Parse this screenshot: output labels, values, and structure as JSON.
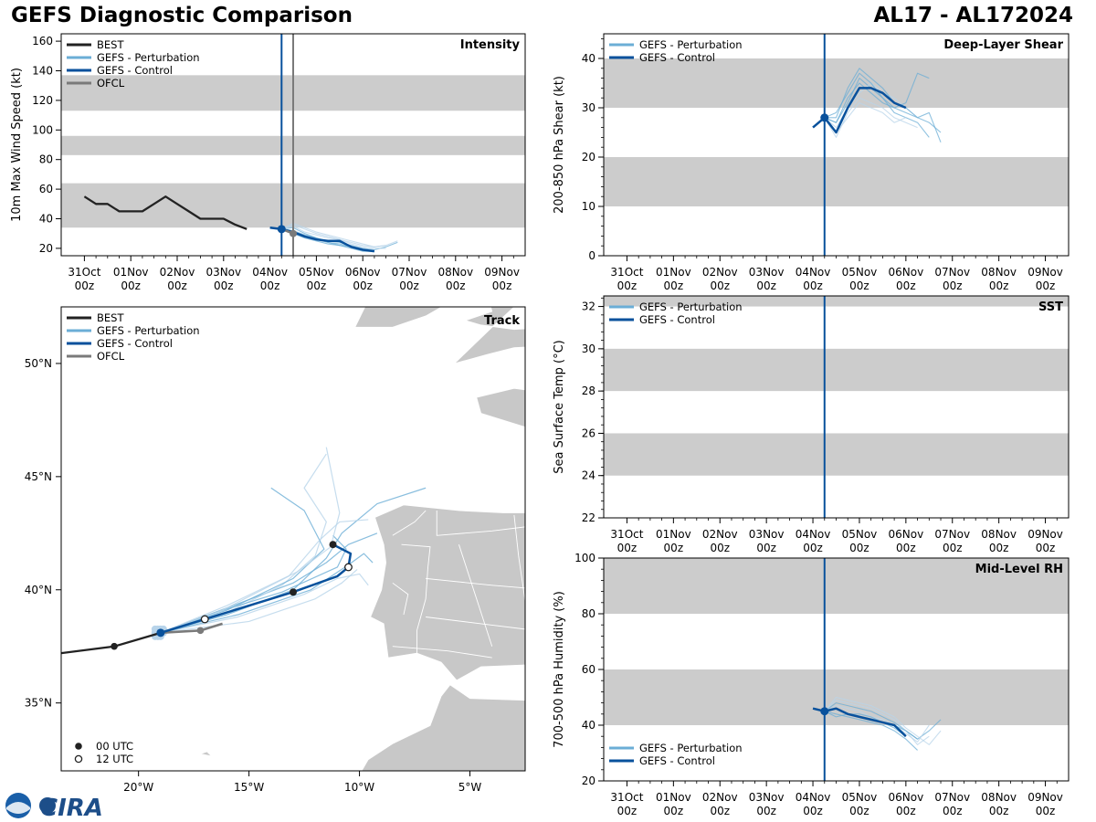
{
  "header": {
    "title": "GEFS Diagnostic Comparison",
    "storm_id": "AL17 - AL172024"
  },
  "logo": {
    "text": "CIRA"
  },
  "colors": {
    "best": "#222222",
    "perturbation": "#6baed6",
    "perturbation_light": "#b8d4ea",
    "control": "#08519c",
    "ofcl": "#7a7a7a",
    "band": "#cccccc",
    "land": "#c8c8c8"
  },
  "time_axis": {
    "ticks": [
      {
        "t": 0,
        "label": "31Oct\n00z"
      },
      {
        "t": 1,
        "label": "01Nov\n00z"
      },
      {
        "t": 2,
        "label": "02Nov\n00z"
      },
      {
        "t": 3,
        "label": "03Nov\n00z"
      },
      {
        "t": 4,
        "label": "04Nov\n00z"
      },
      {
        "t": 5,
        "label": "05Nov\n00z"
      },
      {
        "t": 6,
        "label": "06Nov\n00z"
      },
      {
        "t": 7,
        "label": "07Nov\n00z"
      },
      {
        "t": 8,
        "label": "08Nov\n00z"
      },
      {
        "t": 9,
        "label": "09Nov\n00z"
      }
    ],
    "range": [
      -0.5,
      9.5
    ],
    "init_time": 4.25,
    "ofcl_time": 4.5
  },
  "chart_data": [
    {
      "id": "intensity",
      "type": "line",
      "title": "Intensity",
      "ylabel": "10m Max Wind Speed (kt)",
      "ylim": [
        15,
        165
      ],
      "yticks": [
        20,
        40,
        60,
        80,
        100,
        120,
        140,
        160
      ],
      "bands": [
        [
          34,
          64
        ],
        [
          83,
          96
        ],
        [
          113,
          137
        ]
      ],
      "legend": [
        "BEST",
        "GEFS - Perturbation",
        "GEFS - Control",
        "OFCL"
      ],
      "best": {
        "x": [
          0,
          0.25,
          0.5,
          0.75,
          1,
          1.25,
          1.5,
          1.75,
          2,
          2.25,
          2.5,
          2.75,
          3,
          3.25,
          3.5
        ],
        "y": [
          55,
          50,
          50,
          45,
          45,
          45,
          50,
          55,
          50,
          45,
          40,
          40,
          40,
          36,
          33
        ]
      },
      "control": {
        "x": [
          4,
          4.25,
          4.5,
          4.75,
          5,
          5.25,
          5.5,
          5.75,
          6,
          6.25
        ],
        "y": [
          34,
          33,
          31,
          28,
          26,
          25,
          25,
          21,
          19,
          18
        ]
      },
      "perturbations": [
        {
          "x": [
            4.25,
            4.5,
            4.75,
            5,
            5.25,
            5.5,
            5.75,
            6,
            6.25,
            6.5,
            6.75
          ],
          "y": [
            33,
            34,
            30,
            27,
            25,
            24,
            22,
            20,
            19,
            21,
            24
          ]
        },
        {
          "x": [
            4.25,
            4.5,
            4.75,
            5,
            5.25,
            5.5,
            5.75,
            6,
            6.25,
            6.5
          ],
          "y": [
            33,
            36,
            33,
            30,
            28,
            26,
            23,
            21,
            20,
            20
          ]
        },
        {
          "x": [
            4.25,
            4.5,
            4.75,
            5,
            5.25,
            5.5,
            5.75,
            6,
            6.25
          ],
          "y": [
            33,
            32,
            29,
            27,
            24,
            22,
            20,
            18,
            18
          ]
        },
        {
          "x": [
            4.25,
            4.5,
            4.75,
            5,
            5.25,
            5.5,
            5.75,
            6,
            6.25,
            6.5,
            6.75
          ],
          "y": [
            33,
            35,
            31,
            29,
            27,
            26,
            24,
            22,
            21,
            22,
            25
          ]
        },
        {
          "x": [
            4.25,
            4.5,
            4.75,
            5,
            5.25,
            5.5,
            5.75,
            6,
            6.25
          ],
          "y": [
            33,
            30,
            27,
            25,
            23,
            22,
            21,
            19,
            18
          ]
        },
        {
          "x": [
            4.25,
            4.5,
            4.75,
            5,
            5.25,
            5.5,
            5.75,
            6,
            6.25,
            6.5
          ],
          "y": [
            33,
            37,
            34,
            31,
            29,
            27,
            25,
            23,
            21,
            22
          ]
        },
        {
          "x": [
            4.25,
            4.5,
            4.75,
            5,
            5.25,
            5.5,
            5.75,
            6
          ],
          "y": [
            33,
            31,
            28,
            26,
            24,
            23,
            21,
            19
          ]
        }
      ],
      "ofcl": {
        "x": [
          4.25,
          4.5
        ],
        "y": [
          33,
          30
        ]
      }
    },
    {
      "id": "shear",
      "type": "line",
      "title": "Deep-Layer Shear",
      "ylabel": "200-850 hPa Shear (kt)",
      "ylim": [
        0,
        45
      ],
      "yticks": [
        0,
        10,
        20,
        30,
        40
      ],
      "bands": [
        [
          10,
          20
        ],
        [
          30,
          40
        ]
      ],
      "legend": [
        "GEFS - Perturbation",
        "GEFS - Control"
      ],
      "control": {
        "x": [
          4,
          4.25,
          4.5,
          4.75,
          5,
          5.25,
          5.5,
          5.75,
          6
        ],
        "y": [
          26,
          28,
          25,
          30,
          34,
          34,
          33,
          31,
          30
        ]
      },
      "perturbations": [
        {
          "x": [
            4.25,
            4.5,
            4.75,
            5,
            5.25,
            5.5,
            5.75,
            6,
            6.25,
            6.5,
            6.75
          ],
          "y": [
            28,
            27,
            31,
            36,
            34,
            32,
            30,
            29,
            28,
            29,
            23
          ]
        },
        {
          "x": [
            4.25,
            4.5,
            4.75,
            5,
            5.25,
            5.5,
            5.75,
            6,
            6.25
          ],
          "y": [
            28,
            26,
            30,
            33,
            35,
            33,
            32,
            30,
            28
          ]
        },
        {
          "x": [
            4.25,
            4.5,
            4.75,
            5,
            5.25,
            5.5,
            5.75,
            6,
            6.25,
            6.5
          ],
          "y": [
            28,
            29,
            33,
            37,
            35,
            32,
            29,
            28,
            27,
            24
          ]
        },
        {
          "x": [
            4.25,
            4.5,
            4.75,
            5,
            5.25,
            5.5,
            5.75,
            6,
            6.25
          ],
          "y": [
            28,
            24,
            29,
            32,
            31,
            30,
            28,
            27,
            26
          ]
        },
        {
          "x": [
            4.25,
            4.5,
            4.75,
            5,
            5.25,
            5.5,
            5.75,
            6,
            6.25,
            6.5
          ],
          "y": [
            28,
            27,
            32,
            35,
            33,
            31,
            30,
            31,
            37,
            36
          ]
        },
        {
          "x": [
            4.25,
            4.5,
            4.75,
            5,
            5.25,
            5.5,
            5.75,
            6
          ],
          "y": [
            28,
            25,
            28,
            31,
            30,
            29,
            27,
            28
          ]
        },
        {
          "x": [
            4.25,
            4.5,
            4.75,
            5,
            5.25,
            5.5,
            5.75,
            6,
            6.25,
            6.5,
            6.75
          ],
          "y": [
            28,
            28,
            34,
            38,
            36,
            34,
            31,
            30,
            28,
            27,
            25
          ]
        }
      ]
    },
    {
      "id": "sst",
      "type": "line",
      "title": "SST",
      "ylabel": "Sea Surface Temp (°C)",
      "ylim": [
        22,
        32.5
      ],
      "yticks": [
        22,
        24,
        26,
        28,
        30,
        32
      ],
      "bands": [
        [
          24,
          26
        ],
        [
          28,
          30
        ],
        [
          32,
          32.5
        ]
      ],
      "legend": [
        "GEFS - Perturbation",
        "GEFS - Control"
      ]
    },
    {
      "id": "rh",
      "type": "line",
      "title": "Mid-Level RH",
      "ylabel": "700-500 hPa Humidity (%)",
      "ylim": [
        20,
        100
      ],
      "yticks": [
        20,
        40,
        60,
        80,
        100
      ],
      "bands": [
        [
          40,
          60
        ],
        [
          80,
          100
        ]
      ],
      "legend": [
        "GEFS - Perturbation",
        "GEFS - Control"
      ],
      "control": {
        "x": [
          4,
          4.25,
          4.5,
          4.75,
          5,
          5.25,
          5.5,
          5.75,
          6
        ],
        "y": [
          46,
          45,
          46,
          44,
          43,
          42,
          41,
          40,
          36
        ]
      },
      "perturbations": [
        {
          "x": [
            4.25,
            4.5,
            4.75,
            5,
            5.25,
            5.5,
            5.75,
            6,
            6.25,
            6.5,
            6.75
          ],
          "y": [
            45,
            48,
            47,
            46,
            45,
            43,
            41,
            38,
            35,
            38,
            42
          ]
        },
        {
          "x": [
            4.25,
            4.5,
            4.75,
            5,
            5.25,
            5.5,
            5.75,
            6,
            6.25,
            6.5
          ],
          "y": [
            45,
            49,
            48,
            47,
            46,
            44,
            42,
            38,
            33,
            36
          ]
        },
        {
          "x": [
            4.25,
            4.5,
            4.75,
            5,
            5.25,
            5.5,
            5.75,
            6,
            6.25
          ],
          "y": [
            45,
            44,
            43,
            42,
            41,
            40,
            38,
            35,
            31
          ]
        },
        {
          "x": [
            4.25,
            4.5,
            4.75,
            5,
            5.25,
            5.5,
            5.75,
            6,
            6.25,
            6.5
          ],
          "y": [
            45,
            47,
            46,
            45,
            43,
            42,
            40,
            37,
            34,
            40
          ]
        },
        {
          "x": [
            4.25,
            4.5,
            4.75,
            5,
            5.25,
            5.5,
            5.75,
            6
          ],
          "y": [
            45,
            43,
            44,
            43,
            42,
            41,
            39,
            36
          ]
        },
        {
          "x": [
            4.25,
            4.5,
            4.75,
            5,
            5.25,
            5.5,
            5.75,
            6,
            6.25,
            6.5,
            6.75
          ],
          "y": [
            45,
            50,
            49,
            48,
            47,
            45,
            43,
            39,
            36,
            33,
            38
          ]
        },
        {
          "x": [
            4.25,
            4.5,
            4.75,
            5,
            5.25,
            5.5,
            5.75,
            6,
            6.25
          ],
          "y": [
            45,
            46,
            44,
            44,
            43,
            41,
            40,
            38,
            35
          ]
        }
      ]
    },
    {
      "id": "track",
      "type": "map",
      "title": "Track",
      "xlim": [
        -23.5,
        -2.5
      ],
      "ylim": [
        32,
        52.5
      ],
      "lon_ticks": [
        {
          "v": -20,
          "label": "20°W"
        },
        {
          "v": -15,
          "label": "15°W"
        },
        {
          "v": -10,
          "label": "10°W"
        },
        {
          "v": -5,
          "label": "5°W"
        }
      ],
      "lat_ticks": [
        {
          "v": 35,
          "label": "35°N"
        },
        {
          "v": 40,
          "label": "40°N"
        },
        {
          "v": 45,
          "label": "45°N"
        },
        {
          "v": 50,
          "label": "50°N"
        }
      ],
      "legend": [
        "BEST",
        "GEFS - Perturbation",
        "GEFS - Control",
        "OFCL"
      ],
      "marker_legend": [
        "00 UTC",
        "12 UTC"
      ],
      "best": [
        [
          -23.5,
          37.2
        ],
        [
          -21.1,
          37.5
        ],
        [
          -19.0,
          38.1
        ]
      ],
      "best_00z": [
        [
          -21.1,
          37.5
        ]
      ],
      "ofcl": [
        [
          -19.0,
          38.1
        ],
        [
          -17.2,
          38.2
        ],
        [
          -16.2,
          38.5
        ]
      ],
      "ofcl_points": [
        [
          -17.2,
          38.2
        ]
      ],
      "control": [
        [
          -19.0,
          38.1
        ],
        [
          -17.0,
          38.7
        ],
        [
          -13.0,
          39.9
        ],
        [
          -11.0,
          40.6
        ],
        [
          -10.5,
          41.0
        ],
        [
          -10.4,
          41.6
        ],
        [
          -11.2,
          42.0
        ]
      ],
      "control_00z": [
        [
          -19.0,
          38.1
        ],
        [
          -13.0,
          39.9
        ],
        [
          -11.2,
          42.0
        ]
      ],
      "control_12z": [
        [
          -17.0,
          38.7
        ],
        [
          -10.5,
          41.0
        ]
      ],
      "perturbations": [
        [
          [
            -19.0,
            38.1
          ],
          [
            -16.0,
            39.2
          ],
          [
            -13.0,
            40.3
          ],
          [
            -11.5,
            41.2
          ],
          [
            -10.5,
            42.0
          ],
          [
            -9.2,
            42.5
          ]
        ],
        [
          [
            -19.0,
            38.1
          ],
          [
            -16.0,
            39.0
          ],
          [
            -13.5,
            40.2
          ],
          [
            -12.0,
            41.5
          ],
          [
            -11.5,
            43.0
          ],
          [
            -12.5,
            44.5
          ],
          [
            -11.5,
            46.0
          ]
        ],
        [
          [
            -19.0,
            38.1
          ],
          [
            -16.0,
            38.9
          ],
          [
            -13.0,
            40.0
          ],
          [
            -11.5,
            41.4
          ],
          [
            -10.8,
            42.5
          ],
          [
            -9.2,
            43.8
          ],
          [
            -7.0,
            44.5
          ]
        ],
        [
          [
            -19.0,
            38.1
          ],
          [
            -15.5,
            38.8
          ],
          [
            -12.5,
            39.8
          ],
          [
            -11.0,
            40.5
          ],
          [
            -10.0,
            40.7
          ],
          [
            -9.6,
            40.2
          ]
        ],
        [
          [
            -19.0,
            38.1
          ],
          [
            -16.0,
            39.1
          ],
          [
            -13.0,
            40.5
          ],
          [
            -11.6,
            41.8
          ],
          [
            -12.5,
            43.5
          ],
          [
            -14.0,
            44.5
          ]
        ],
        [
          [
            -19.0,
            38.1
          ],
          [
            -15.0,
            38.6
          ],
          [
            -12.0,
            39.6
          ],
          [
            -10.8,
            40.3
          ],
          [
            -10.1,
            40.9
          ]
        ],
        [
          [
            -19.0,
            38.1
          ],
          [
            -16.5,
            39.0
          ],
          [
            -13.5,
            39.9
          ],
          [
            -11.0,
            41.0
          ],
          [
            -10.6,
            41.8
          ],
          [
            -11.2,
            42.4
          ]
        ],
        [
          [
            -19.0,
            38.1
          ],
          [
            -16.0,
            39.3
          ],
          [
            -12.8,
            40.8
          ],
          [
            -11.3,
            41.9
          ],
          [
            -10.9,
            43.4
          ],
          [
            -11.5,
            46.3
          ]
        ],
        [
          [
            -19.0,
            38.1
          ],
          [
            -15.5,
            38.9
          ],
          [
            -12.2,
            40.0
          ],
          [
            -10.5,
            41.1
          ],
          [
            -9.8,
            41.6
          ],
          [
            -9.4,
            41.2
          ]
        ],
        [
          [
            -19.0,
            38.1
          ],
          [
            -16.2,
            39.1
          ],
          [
            -13.2,
            40.6
          ],
          [
            -11.8,
            42.2
          ],
          [
            -10.9,
            43.0
          ],
          [
            -9.6,
            43.1
          ]
        ]
      ]
    }
  ]
}
